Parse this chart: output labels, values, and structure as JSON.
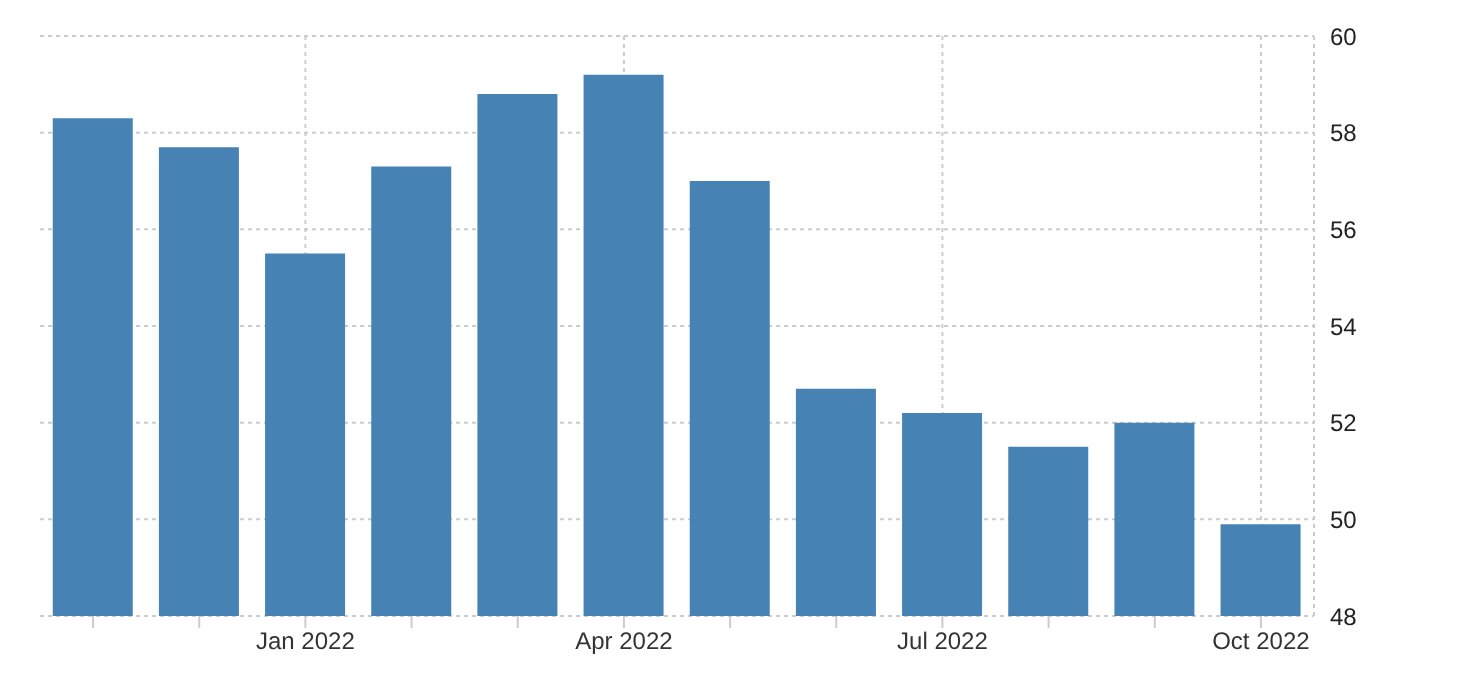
{
  "chart_data": {
    "type": "bar",
    "categories": [
      null,
      null,
      "Jan 2022",
      null,
      null,
      "Apr 2022",
      null,
      null,
      "Jul 2022",
      null,
      null,
      "Oct 2022"
    ],
    "values": [
      58.3,
      57.7,
      55.5,
      57.3,
      58.8,
      59.2,
      57.0,
      52.7,
      52.2,
      51.5,
      52.0,
      49.9
    ],
    "color": "#4682b4",
    "ylim": [
      48,
      60
    ],
    "yticks": [
      48,
      50,
      52,
      54,
      56,
      58,
      60
    ],
    "grid": true,
    "legend": false
  }
}
